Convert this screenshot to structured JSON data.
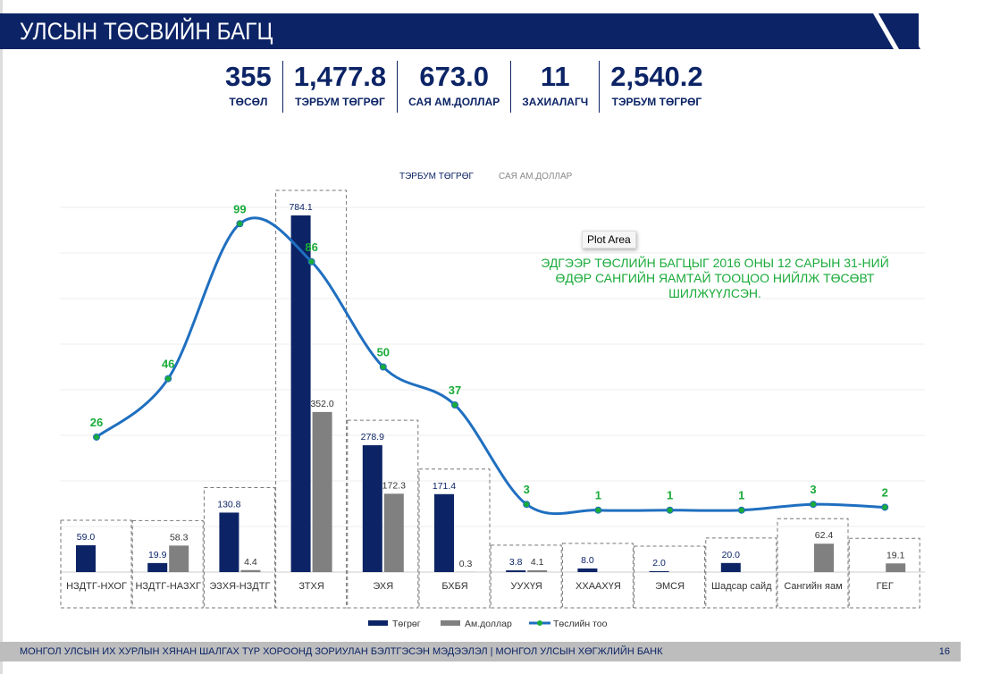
{
  "header": {
    "title": "УЛСЫН ТӨСВИЙН БАГЦ"
  },
  "stats": [
    {
      "value": "355",
      "label": "ТӨСӨЛ"
    },
    {
      "value": "1,477.8",
      "label": "ТЭРБУМ ТӨГРӨГ"
    },
    {
      "value": "673.0",
      "label": "САЯ АМ.ДОЛЛАР"
    },
    {
      "value": "11",
      "label": "ЗАХИАЛАГЧ"
    },
    {
      "value": "2,540.2",
      "label": "ТЭРБУМ ТӨГРӨГ"
    }
  ],
  "note": "ЭДГЭЭР ТӨСЛИЙН БАГЦЫГ 2016 ОНЫ 12 САРЫН 31-НИЙ ӨДӨР САНГИЙН ЯАМТАЙ ТООЦОО НИЙЛЖ ТӨСӨВТ ШИЛЖҮҮЛСЭН.",
  "tooltip": "Plot Area",
  "chart_data": {
    "type": "bar",
    "top_legend": [
      "ТЭРБУМ ТӨГРӨГ",
      "САЯ АМ.ДОЛЛАР"
    ],
    "categories": [
      "НЗДТГ-НХОГ",
      "НЗДТГ-НАЗХГ",
      "ЭЗХЯ-НЗДТГ",
      "ЗТХЯ",
      "ЭХЯ",
      "БХБЯ",
      "УУХҮЯ",
      "ХХААХҮЯ",
      "ЭМСЯ",
      "Шадсар сайд",
      "Сангийн яам",
      "ГЕГ"
    ],
    "series": [
      {
        "name": "Төгрөг",
        "type": "bar",
        "color": "#0c2466",
        "values": [
          59.0,
          19.9,
          130.8,
          784.1,
          278.9,
          171.4,
          3.8,
          8.0,
          2.0,
          20.0,
          null,
          null
        ]
      },
      {
        "name": "Ам.доллар",
        "type": "bar",
        "color": "#808080",
        "values": [
          null,
          58.3,
          4.4,
          352.0,
          172.3,
          0.3,
          4.1,
          null,
          null,
          null,
          62.4,
          19.1
        ]
      },
      {
        "name": "Төслийн тоо",
        "type": "line",
        "color": "#1f6fc0",
        "values": [
          26,
          46,
          99,
          86,
          50,
          37,
          3,
          1,
          1,
          1,
          3,
          2
        ]
      }
    ],
    "ylim": [
      0,
      800
    ]
  },
  "footer": {
    "text": "МОНГОЛ УЛСЫН ИХ ХУРЛЫН ХЯНАН ШАЛГАХ ТҮР ХОРООНД ЗОРИУЛАН БЭЛТГЭСЭН МЭДЭЭЛЭЛ  |  МОНГОЛ УЛСЫН ХӨГЖЛИЙН БАНК",
    "page": "16"
  }
}
